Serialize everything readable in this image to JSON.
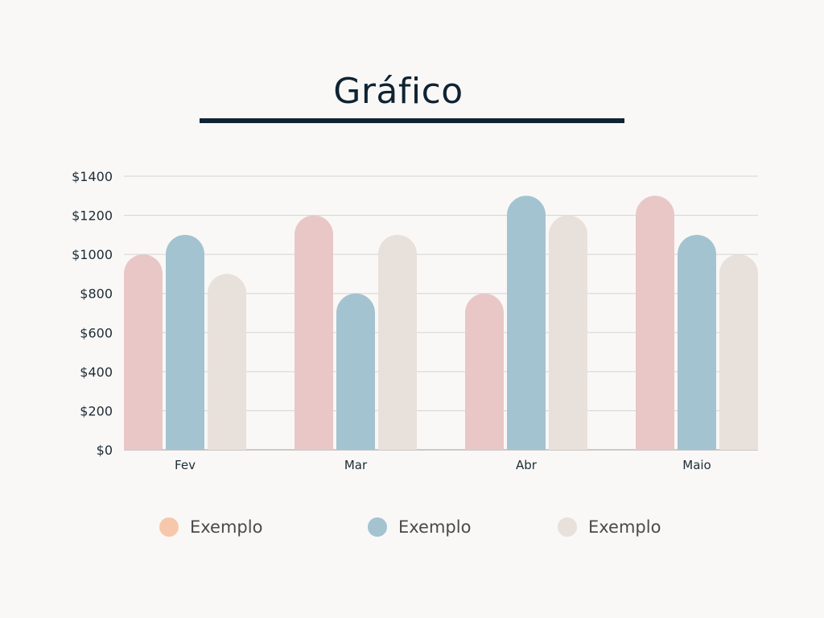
{
  "title": "Gráfico",
  "chart_data": {
    "type": "bar",
    "categories": [
      "Fev",
      "Mar",
      "Abr",
      "Maio"
    ],
    "series": [
      {
        "name": "Exemplo",
        "values": [
          1000,
          1200,
          800,
          1300
        ],
        "color": "#e9c7c7"
      },
      {
        "name": "Exemplo",
        "values": [
          1100,
          800,
          1300,
          1100
        ],
        "color": "#a3c3d1"
      },
      {
        "name": "Exemplo",
        "values": [
          900,
          1100,
          1200,
          1000
        ],
        "color": "#e8e0da"
      }
    ],
    "yticks": [
      "$0",
      "$200",
      "$400",
      "$600",
      "$800",
      "$1000",
      "$1200",
      "$1400"
    ],
    "ylim": [
      0,
      1400
    ],
    "grid": true,
    "legend_position": "bottom"
  },
  "legend": [
    {
      "label": "Exemplo",
      "color": "#f7c7ab"
    },
    {
      "label": "Exemplo",
      "color": "#a3c3d1"
    },
    {
      "label": "Exemplo",
      "color": "#e8e0da"
    }
  ]
}
